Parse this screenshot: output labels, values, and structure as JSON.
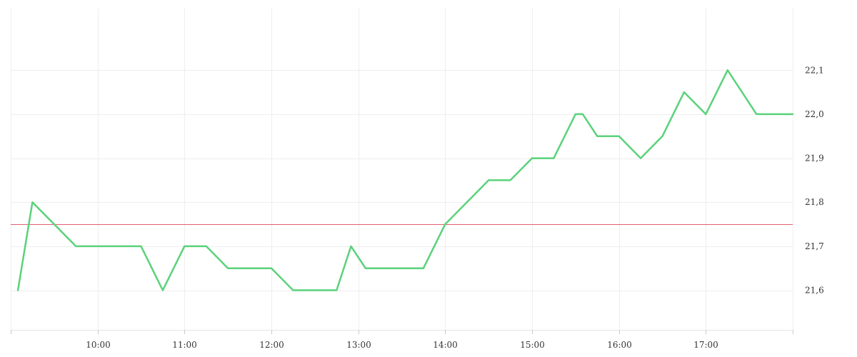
{
  "chart_data": {
    "type": "line",
    "x_tick_labels": [
      "10:00",
      "11:00",
      "12:00",
      "13:00",
      "14:00",
      "15:00",
      "16:00",
      "17:00"
    ],
    "y_tick_labels": [
      "21,6",
      "21,7",
      "21,8",
      "21,9",
      "22,0",
      "22,1"
    ],
    "y_ticks": [
      21.6,
      21.7,
      21.8,
      21.9,
      22.0,
      22.1
    ],
    "xlim": [
      "09:00",
      "18:00"
    ],
    "ylim": [
      21.51,
      22.24
    ],
    "grid": true,
    "reference_line": {
      "value": 21.75,
      "color": "#e06070"
    },
    "series": [
      {
        "color": "#5ad27a",
        "points": [
          {
            "x": "09:05",
            "y": 21.6
          },
          {
            "x": "09:15",
            "y": 21.8
          },
          {
            "x": "09:45",
            "y": 21.7
          },
          {
            "x": "10:30",
            "y": 21.7
          },
          {
            "x": "10:45",
            "y": 21.6
          },
          {
            "x": "11:00",
            "y": 21.7
          },
          {
            "x": "11:15",
            "y": 21.7
          },
          {
            "x": "11:30",
            "y": 21.65
          },
          {
            "x": "12:00",
            "y": 21.65
          },
          {
            "x": "12:15",
            "y": 21.6
          },
          {
            "x": "12:45",
            "y": 21.6
          },
          {
            "x": "12:55",
            "y": 21.7
          },
          {
            "x": "13:05",
            "y": 21.65
          },
          {
            "x": "13:45",
            "y": 21.65
          },
          {
            "x": "14:00",
            "y": 21.75
          },
          {
            "x": "14:30",
            "y": 21.85
          },
          {
            "x": "14:45",
            "y": 21.85
          },
          {
            "x": "15:00",
            "y": 21.9
          },
          {
            "x": "15:15",
            "y": 21.9
          },
          {
            "x": "15:30",
            "y": 22.0
          },
          {
            "x": "15:35",
            "y": 22.0
          },
          {
            "x": "15:45",
            "y": 21.95
          },
          {
            "x": "16:00",
            "y": 21.95
          },
          {
            "x": "16:15",
            "y": 21.9
          },
          {
            "x": "16:30",
            "y": 21.95
          },
          {
            "x": "16:45",
            "y": 22.05
          },
          {
            "x": "17:00",
            "y": 22.0
          },
          {
            "x": "17:15",
            "y": 22.1
          },
          {
            "x": "17:35",
            "y": 22.0
          },
          {
            "x": "18:00",
            "y": 22.0
          }
        ]
      }
    ]
  }
}
